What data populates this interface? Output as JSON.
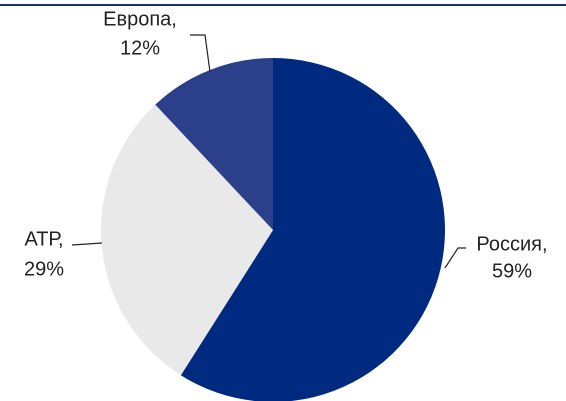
{
  "chart_data": {
    "type": "pie",
    "categories": [
      "Россия,",
      "АТР,",
      "Европа,"
    ],
    "values": [
      59,
      29,
      12
    ],
    "value_labels": [
      "59%",
      "29%",
      "12%"
    ],
    "colors": [
      "#002a7f",
      "#e9e9e9",
      "#2c3f8a"
    ]
  }
}
